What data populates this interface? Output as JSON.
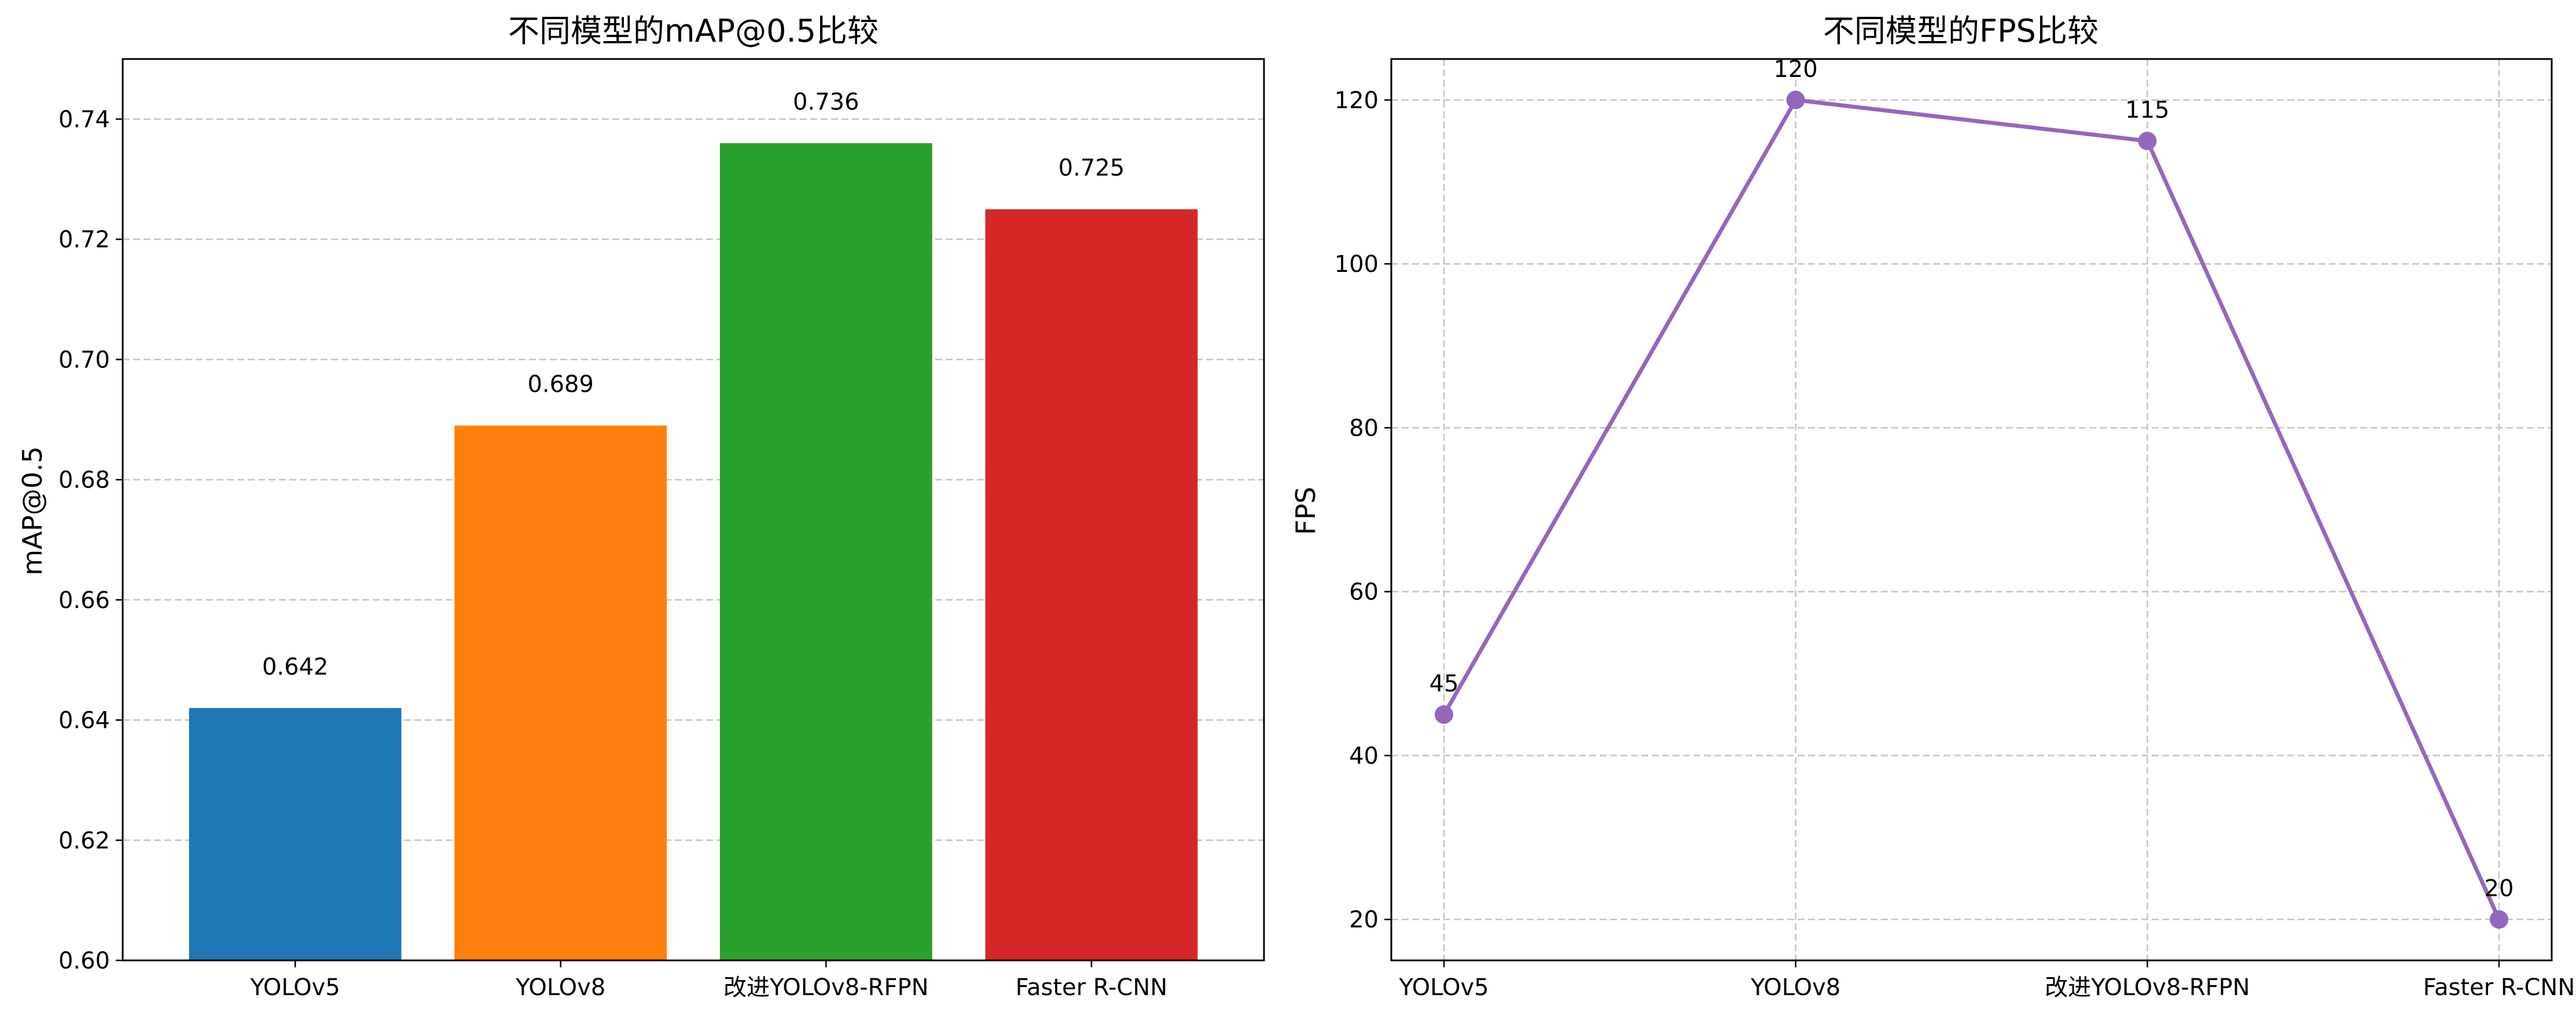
{
  "chart_data": [
    {
      "type": "bar",
      "title": "不同模型的mAP@0.5比较",
      "xlabel": "",
      "ylabel": "mAP@0.5",
      "categories": [
        "YOLOv5",
        "YOLOv8",
        "改进YOLOv8-RFPN",
        "Faster R-CNN"
      ],
      "values": [
        0.642,
        0.689,
        0.736,
        0.725
      ],
      "value_labels": [
        "0.642",
        "0.689",
        "0.736",
        "0.725"
      ],
      "colors": [
        "#1f77b4",
        "#ff7f0e",
        "#2ca02c",
        "#d62728"
      ],
      "ylim": [
        0.6,
        0.75
      ],
      "yticks": [
        0.6,
        0.62,
        0.64,
        0.66,
        0.68,
        0.7,
        0.72,
        0.74
      ],
      "ytick_labels": [
        "0.60",
        "0.62",
        "0.64",
        "0.66",
        "0.68",
        "0.70",
        "0.72",
        "0.74"
      ],
      "grid": "y-dashed"
    },
    {
      "type": "line",
      "title": "不同模型的FPS比较",
      "xlabel": "",
      "ylabel": "FPS",
      "categories": [
        "YOLOv5",
        "YOLOv8",
        "改进YOLOv8-RFPN",
        "Faster R-CNN"
      ],
      "values": [
        45,
        120,
        115,
        20
      ],
      "value_labels": [
        "45",
        "120",
        "115",
        "20"
      ],
      "color": "#9467bd",
      "marker": "circle",
      "ylim": [
        15,
        125
      ],
      "yticks": [
        20,
        40,
        60,
        80,
        100,
        120
      ],
      "ytick_labels": [
        "20",
        "40",
        "60",
        "80",
        "100",
        "120"
      ],
      "grid": "both-dashed"
    }
  ]
}
